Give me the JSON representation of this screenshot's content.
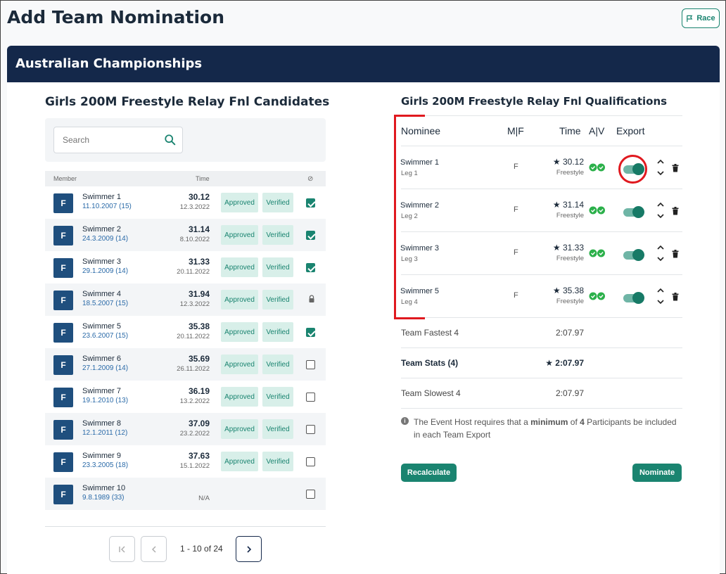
{
  "header": {
    "title": "Add Team Nomination",
    "race_label": "Race"
  },
  "card": {
    "title": "Australian Championships"
  },
  "candidates": {
    "title": "Girls 200M Freestyle Relay Fnl Candidates",
    "search_placeholder": "Search",
    "columns": {
      "member": "Member",
      "time": "Time",
      "flag": "⊘"
    },
    "rows": [
      {
        "gender": "F",
        "name": "Swimmer 1",
        "dob": "11.10.2007 (15)",
        "time": "30.12",
        "date": "12.3.2022",
        "approved": "Approved",
        "verified": "Verified",
        "state": "checked"
      },
      {
        "gender": "F",
        "name": "Swimmer 2",
        "dob": "24.3.2009 (14)",
        "time": "31.14",
        "date": "8.10.2022",
        "approved": "Approved",
        "verified": "Verified",
        "state": "checked"
      },
      {
        "gender": "F",
        "name": "Swimmer 3",
        "dob": "29.1.2009 (14)",
        "time": "31.33",
        "date": "20.11.2022",
        "approved": "Approved",
        "verified": "Verified",
        "state": "checked"
      },
      {
        "gender": "F",
        "name": "Swimmer 4",
        "dob": "18.5.2007 (15)",
        "time": "31.94",
        "date": "12.3.2022",
        "approved": "Approved",
        "verified": "Verified",
        "state": "locked"
      },
      {
        "gender": "F",
        "name": "Swimmer 5",
        "dob": "23.6.2007 (15)",
        "time": "35.38",
        "date": "20.11.2022",
        "approved": "Approved",
        "verified": "Verified",
        "state": "checked"
      },
      {
        "gender": "F",
        "name": "Swimmer 6",
        "dob": "27.1.2009 (14)",
        "time": "35.69",
        "date": "26.11.2022",
        "approved": "Approved",
        "verified": "Verified",
        "state": "unchecked"
      },
      {
        "gender": "F",
        "name": "Swimmer 7",
        "dob": "19.1.2010 (13)",
        "time": "36.19",
        "date": "13.2.2022",
        "approved": "Approved",
        "verified": "Verified",
        "state": "unchecked"
      },
      {
        "gender": "F",
        "name": "Swimmer 8",
        "dob": "12.1.2011 (12)",
        "time": "37.09",
        "date": "23.2.2022",
        "approved": "Approved",
        "verified": "Verified",
        "state": "unchecked"
      },
      {
        "gender": "F",
        "name": "Swimmer 9",
        "dob": "23.3.2005 (18)",
        "time": "37.63",
        "date": "15.1.2022",
        "approved": "Approved",
        "verified": "Verified",
        "state": "unchecked"
      },
      {
        "gender": "F",
        "name": "Swimmer 10",
        "dob": "9.8.1989 (33)",
        "time": "",
        "date": "N/A",
        "approved": "",
        "verified": "",
        "state": "unchecked"
      }
    ],
    "pager": {
      "info": "1 - 10 of 24"
    }
  },
  "qualifications": {
    "title": "Girls 200M Freestyle Relay Fnl Qualifications",
    "columns": {
      "nominee": "Nominee",
      "mf": "M|F",
      "time": "Time",
      "av": "A|V",
      "export": "Export"
    },
    "nominees": [
      {
        "name": "Swimmer 1",
        "leg": "Leg 1",
        "mf": "F",
        "time": "★ 30.12",
        "stroke": "Freestyle"
      },
      {
        "name": "Swimmer 2",
        "leg": "Leg 2",
        "mf": "F",
        "time": "★ 31.14",
        "stroke": "Freestyle"
      },
      {
        "name": "Swimmer 3",
        "leg": "Leg 3",
        "mf": "F",
        "time": "★ 31.33",
        "stroke": "Freestyle"
      },
      {
        "name": "Swimmer 5",
        "leg": "Leg 4",
        "mf": "F",
        "time": "★ 35.38",
        "stroke": "Freestyle"
      }
    ],
    "stats": [
      {
        "label": "Team Fastest 4",
        "value": "2:07.97",
        "bold": false
      },
      {
        "label": "Team Stats (4)",
        "value": "★ 2:07.97",
        "bold": true
      },
      {
        "label": "Team Slowest 4",
        "value": "2:07.97",
        "bold": false
      }
    ],
    "note": {
      "pre": "The Event Host requires that a ",
      "strong1": "minimum",
      "mid": " of ",
      "strong2": "4",
      "post": " Participants be included in each Team Export"
    },
    "recalculate_label": "Recalculate",
    "nominate_label": "Nominate"
  },
  "colors": {
    "accent": "#1a8470",
    "navy": "#14284a",
    "annotation": "#e0191f"
  }
}
